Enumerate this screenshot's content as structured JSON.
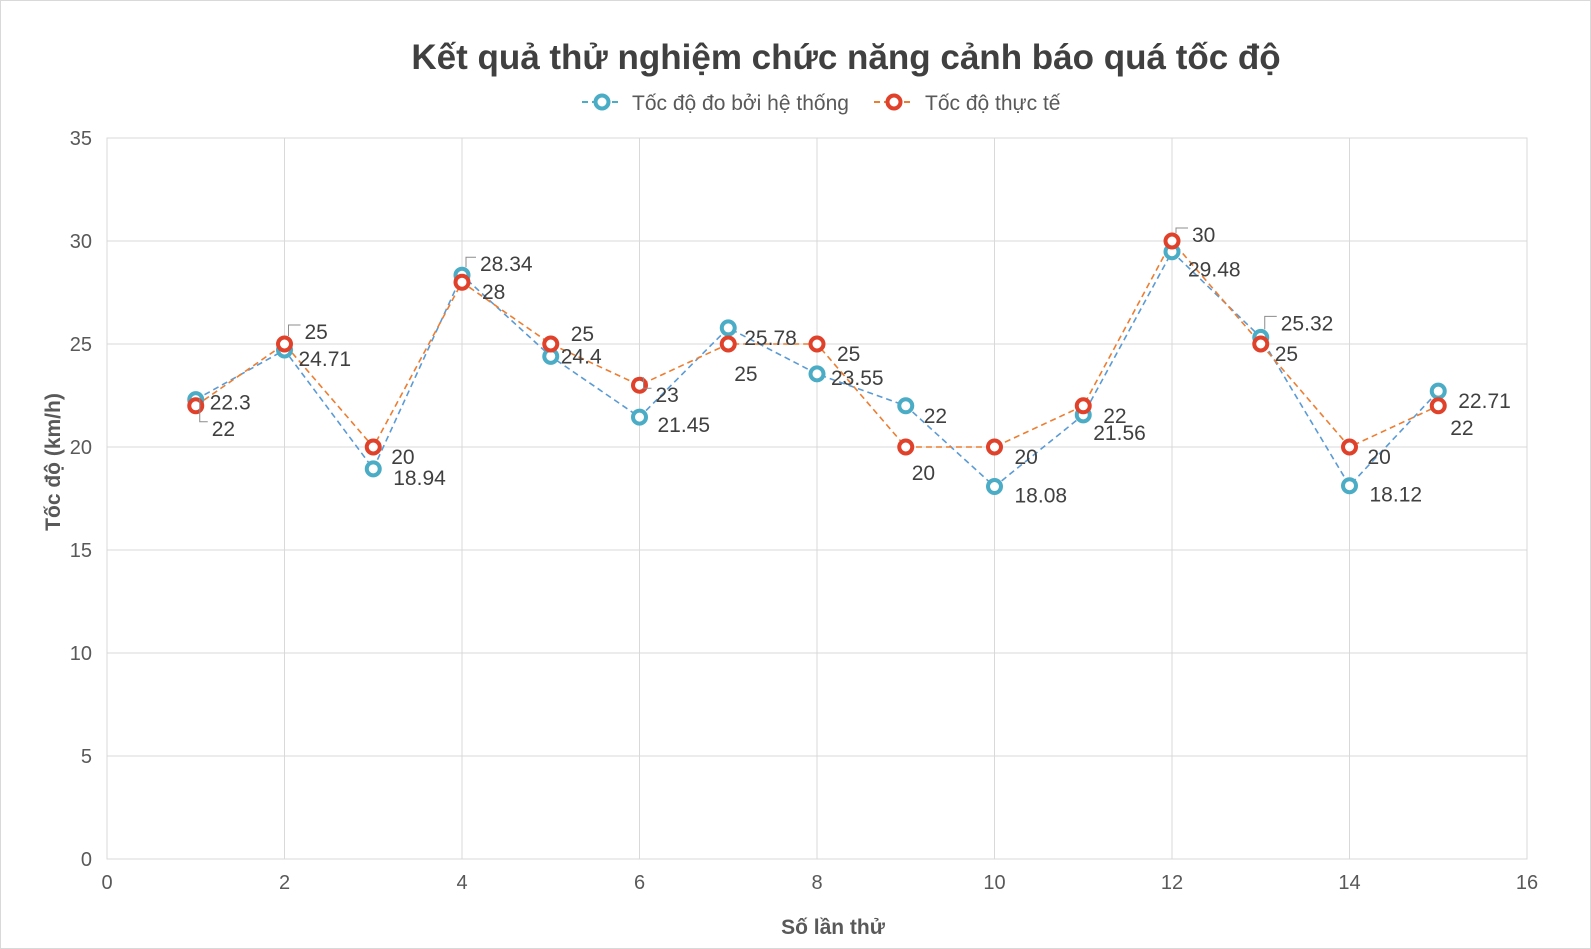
{
  "chart_data": {
    "type": "scatter",
    "title": "Kết quả thử nghiệm chức năng cảnh báo quá tốc độ",
    "xlabel": "Số lần thử",
    "ylabel": "Tốc độ (km/h)",
    "xlim": [
      0,
      16
    ],
    "ylim": [
      0,
      35
    ],
    "xticks": [
      0,
      2,
      4,
      6,
      8,
      10,
      12,
      14,
      16
    ],
    "yticks": [
      0,
      5,
      10,
      15,
      20,
      25,
      30,
      35
    ],
    "grid": true,
    "legend_position": "top",
    "series": [
      {
        "name": "Tốc độ đo bởi hệ thống",
        "color": "#4bacc6",
        "line_style": "dashed",
        "x": [
          1,
          2,
          3,
          4,
          5,
          6,
          7,
          8,
          9,
          10,
          11,
          12,
          13,
          14,
          15
        ],
        "y": [
          22.3,
          24.71,
          18.94,
          28.34,
          24.4,
          21.45,
          25.78,
          23.55,
          22,
          18.08,
          21.56,
          29.48,
          25.32,
          18.12,
          22.71
        ],
        "labels": [
          "22.3",
          "24.71",
          "18.94",
          "28.34",
          "24.4",
          "21.45",
          "25.78",
          "23.55",
          "22",
          "18.08",
          "21.56",
          "29.48",
          "25.32",
          "18.12",
          "22.71"
        ]
      },
      {
        "name": "Tốc độ thực tế",
        "color": "#ed7d31",
        "line_style": "dashed",
        "x": [
          1,
          2,
          3,
          4,
          5,
          6,
          7,
          8,
          9,
          10,
          11,
          12,
          13,
          14,
          15
        ],
        "y": [
          22,
          25,
          20,
          28,
          25,
          23,
          25,
          25,
          20,
          20,
          22,
          30,
          25,
          20,
          22
        ],
        "labels": [
          "22",
          "25",
          "20",
          "28",
          "25",
          "23",
          "25",
          "25",
          "20",
          "20",
          "22",
          "30",
          "25",
          "20",
          "22"
        ]
      }
    ]
  }
}
